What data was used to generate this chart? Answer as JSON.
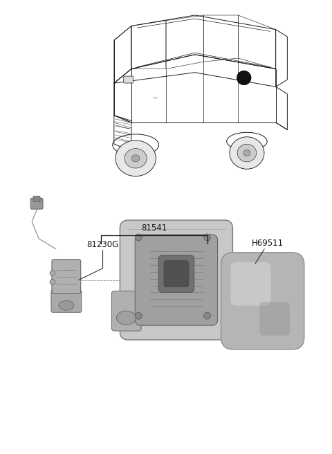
{
  "background_color": "#ffffff",
  "line_color": "#222222",
  "gray_dark": "#555555",
  "gray_mid": "#888888",
  "gray_light": "#bbbbbb",
  "gray_lighter": "#d0d0d0",
  "label_81541": "81541",
  "label_81230G": "81230G",
  "label_H69511": "H69511",
  "label_fontsize": 8.5,
  "car_fg": "#1a1a1a",
  "car_bg": "#ffffff"
}
